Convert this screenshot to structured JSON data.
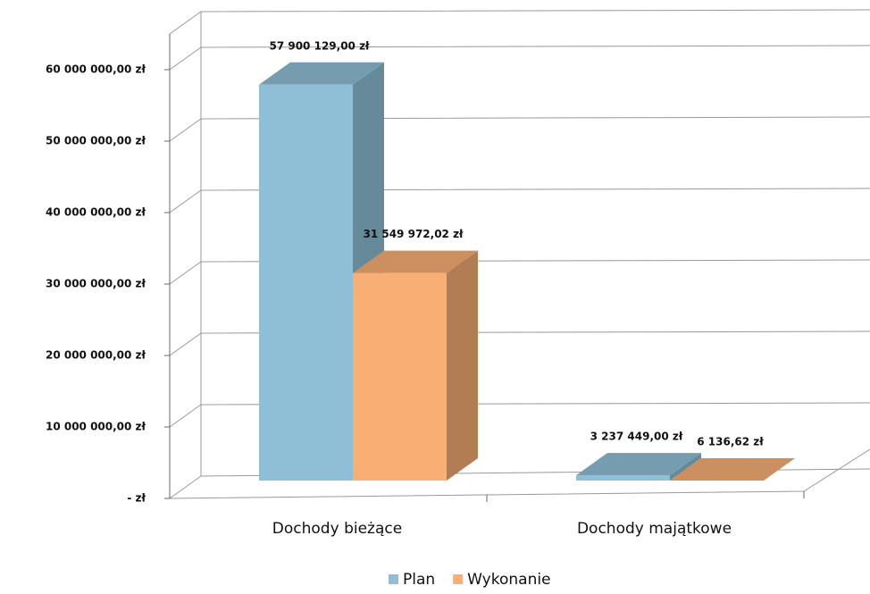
{
  "chart_data": {
    "type": "bar3d",
    "categories": [
      "Dochody bieżące",
      "Dochody majątkowe"
    ],
    "series": [
      {
        "name": "Plan",
        "color": "#8fbfd6",
        "values": [
          57900129,
          3237449
        ],
        "value_labels": [
          "57 900 129,00 zł",
          "3 237 449,00 zł"
        ]
      },
      {
        "name": "Wykonanie",
        "color": "#f9ae74",
        "values": [
          31549972.02,
          6136.62
        ],
        "value_labels": [
          "31 549 972,02 zł",
          "6 136,62 zł"
        ]
      }
    ],
    "ylim": [
      0,
      65000000
    ],
    "yticks": [
      {
        "value": 0,
        "label": "-   zł"
      },
      {
        "value": 10000000,
        "label": "10 000 000,00 zł"
      },
      {
        "value": 20000000,
        "label": "20 000 000,00 zł"
      },
      {
        "value": 30000000,
        "label": "30 000 000,00 zł"
      },
      {
        "value": 40000000,
        "label": "40 000 000,00 zł"
      },
      {
        "value": 50000000,
        "label": "50 000 000,00 zł"
      },
      {
        "value": 60000000,
        "label": "60 000 000,00 zł"
      }
    ],
    "grid": true,
    "legend": "bottom"
  }
}
